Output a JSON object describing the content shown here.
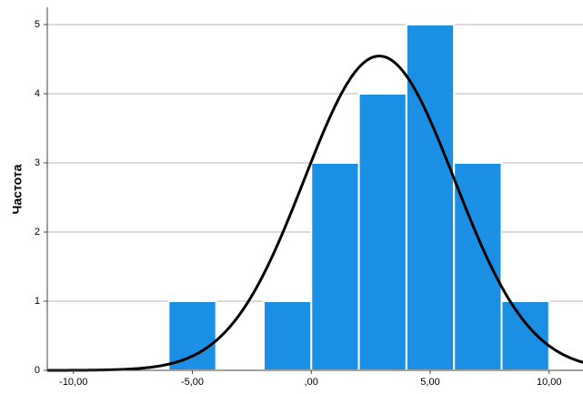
{
  "chart_data": {
    "type": "histogram",
    "y_label": "Частота",
    "bins": [
      -6,
      -4,
      -2,
      0,
      2,
      4,
      6,
      8,
      10
    ],
    "counts": [
      1,
      0,
      1,
      3,
      4,
      5,
      3,
      1
    ],
    "color": "#1a8fe3",
    "curve": {
      "mean": 2.86,
      "std_dev": 3.16
    },
    "xlim": [
      -11.1,
      11.5
    ],
    "xticks": [
      {
        "value": -10,
        "label": "-10,00"
      },
      {
        "value": -5,
        "label": "-5,00"
      },
      {
        "value": 0,
        "label": ",00"
      },
      {
        "value": 5,
        "label": "5,00"
      },
      {
        "value": 10,
        "label": "10,00"
      }
    ],
    "ylim": [
      0,
      5.25
    ],
    "yticks": [
      0,
      1,
      2,
      3,
      4,
      5
    ],
    "grid": true
  }
}
